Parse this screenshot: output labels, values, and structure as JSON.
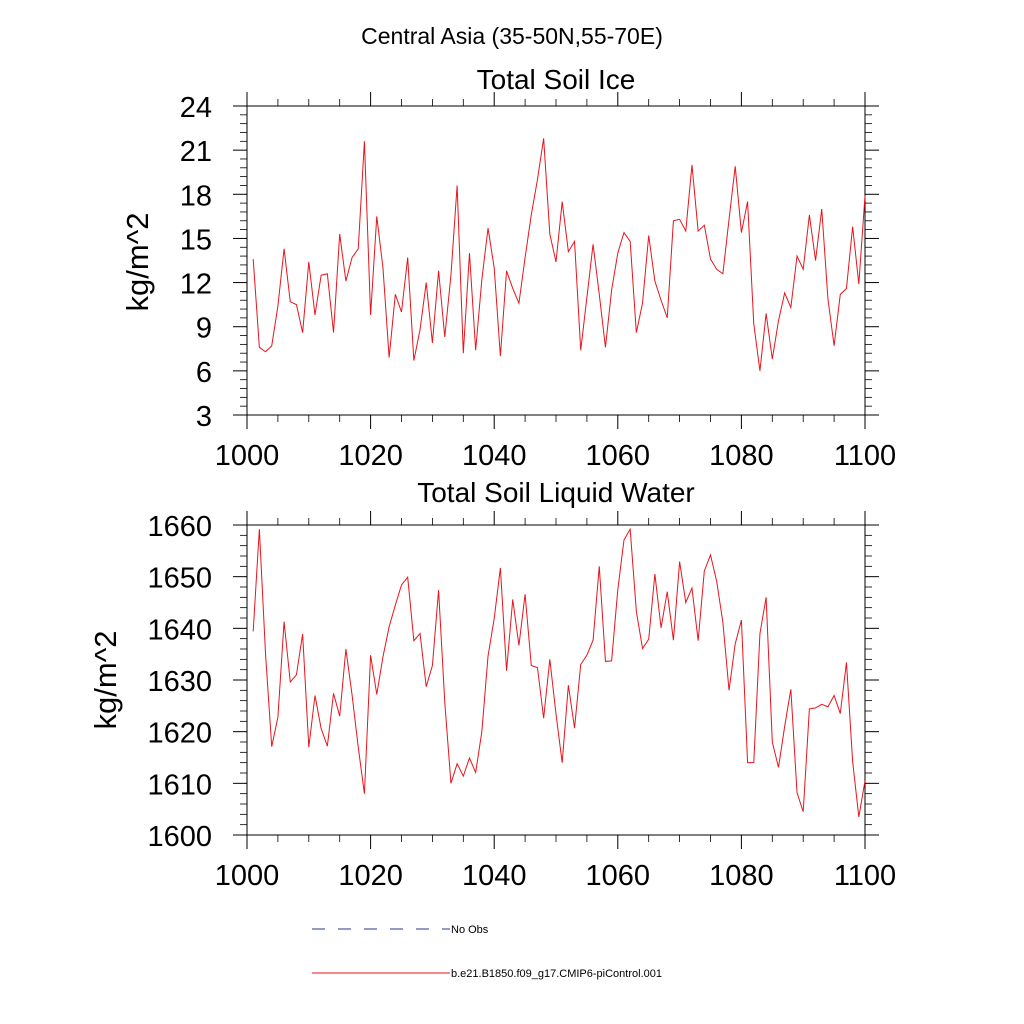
{
  "figure": {
    "region_title": "Central Asia (35-50N,55-70E)"
  },
  "legend": {
    "entries": [
      {
        "label": "No Obs",
        "style": "dashed",
        "color": "#2a3a8c"
      },
      {
        "label": "b.e21.B1850.f09_g17.CMIP6-piControl.001",
        "style": "solid",
        "color": "#e8141c"
      }
    ]
  },
  "colors": {
    "series": "#e8141c",
    "axis": "#000000",
    "no_obs": "#2a3a8c"
  },
  "chart_data": [
    {
      "type": "line",
      "title": "Total Soil Ice",
      "xlabel": "",
      "ylabel": "kg/m^2",
      "xlim": [
        1000,
        1100
      ],
      "ylim": [
        3,
        24
      ],
      "xticks": [
        1000,
        1020,
        1040,
        1060,
        1080,
        1100
      ],
      "yticks": [
        3,
        6,
        9,
        12,
        15,
        18,
        21,
        24
      ],
      "series": [
        {
          "name": "b.e21.B1850.f09_g17.CMIP6-piControl.001",
          "x_start": 1001,
          "values": [
            13.6,
            7.6,
            7.3,
            7.7,
            10.4,
            14.3,
            10.7,
            10.5,
            8.6,
            13.4,
            9.8,
            12.5,
            12.6,
            8.6,
            15.3,
            12.1,
            13.7,
            14.3,
            21.6,
            9.8,
            16.5,
            13.0,
            6.9,
            11.2,
            10.0,
            13.7,
            6.7,
            8.8,
            12.0,
            7.9,
            12.8,
            8.3,
            12.5,
            18.6,
            7.2,
            14.0,
            7.4,
            12.2,
            15.7,
            13.0,
            7.0,
            12.8,
            11.6,
            10.6,
            13.7,
            16.6,
            19.0,
            21.8,
            15.3,
            13.4,
            17.5,
            14.1,
            14.8,
            7.4,
            11.0,
            14.6,
            11.2,
            7.6,
            11.5,
            14.0,
            15.4,
            14.8,
            8.6,
            10.6,
            15.2,
            12.1,
            10.8,
            9.6,
            16.2,
            16.3,
            15.5,
            20.0,
            15.5,
            15.9,
            13.6,
            12.9,
            12.6,
            16.3,
            19.9,
            15.4,
            17.5,
            9.2,
            6.0,
            9.9,
            6.8,
            9.4,
            11.3,
            10.3,
            13.8,
            12.9,
            16.6,
            13.5,
            17.0,
            10.9,
            7.7,
            11.2,
            11.6,
            15.8,
            11.9,
            17.9
          ]
        }
      ]
    },
    {
      "type": "line",
      "title": "Total Soil Liquid Water",
      "xlabel": "",
      "ylabel": "kg/m^2",
      "xlim": [
        1000,
        1100
      ],
      "ylim": [
        1600,
        1660
      ],
      "xticks": [
        1000,
        1020,
        1040,
        1060,
        1080,
        1100
      ],
      "yticks": [
        1600,
        1610,
        1620,
        1630,
        1640,
        1650,
        1660
      ],
      "series": [
        {
          "name": "b.e21.B1850.f09_g17.CMIP6-piControl.001",
          "x_start": 1001,
          "values": [
            1639.4,
            1659.2,
            1635.0,
            1617.1,
            1622.8,
            1641.3,
            1629.6,
            1631.0,
            1638.9,
            1617.0,
            1627.0,
            1620.6,
            1617.2,
            1627.4,
            1623.0,
            1636.0,
            1627.1,
            1617.0,
            1608.0,
            1634.8,
            1627.2,
            1634.5,
            1640.3,
            1644.5,
            1648.4,
            1649.9,
            1637.6,
            1639.0,
            1628.7,
            1632.8,
            1647.4,
            1625.7,
            1610.0,
            1613.8,
            1611.4,
            1614.9,
            1612.1,
            1620.0,
            1634.6,
            1641.9,
            1651.7,
            1631.8,
            1645.6,
            1636.7,
            1646.6,
            1632.8,
            1632.4,
            1622.6,
            1634.0,
            1623.4,
            1614.0,
            1629.0,
            1620.7,
            1633.0,
            1634.8,
            1637.7,
            1652.0,
            1633.6,
            1633.7,
            1647.5,
            1657.1,
            1659.2,
            1643.3,
            1636.1,
            1637.9,
            1650.5,
            1640.1,
            1647.1,
            1637.7,
            1652.9,
            1645.0,
            1647.8,
            1637.6,
            1651.1,
            1654.2,
            1649.1,
            1641.2,
            1628.0,
            1637.0,
            1641.6,
            1614.0,
            1614.0,
            1639.0,
            1646.0,
            1618.0,
            1613.1,
            1621.0,
            1628.2,
            1608.2,
            1604.5,
            1624.4,
            1624.6,
            1625.3,
            1624.8,
            1627.0,
            1623.5,
            1633.4,
            1614.2,
            1603.5,
            1610.5
          ]
        }
      ]
    }
  ]
}
